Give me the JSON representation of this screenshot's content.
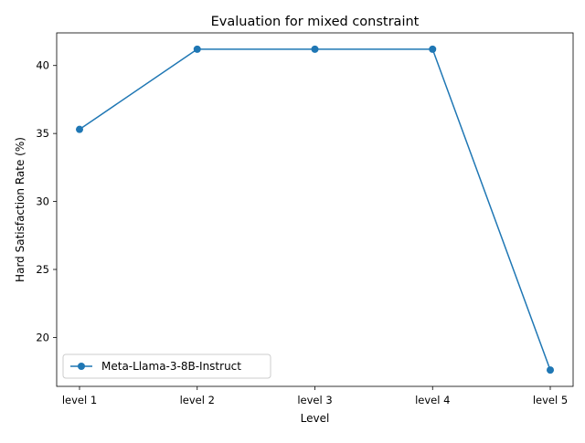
{
  "chart_data": {
    "type": "line",
    "title": "Evaluation for mixed constraint",
    "xlabel": "Level",
    "ylabel": "Hard Satisfaction Rate (%)",
    "categories": [
      "level 1",
      "level 2",
      "level 3",
      "level 4",
      "level 5"
    ],
    "series": [
      {
        "name": "Meta-Llama-3-8B-Instruct",
        "values": [
          35.3,
          41.2,
          41.2,
          41.2,
          17.6
        ],
        "color": "#1f77b4",
        "marker": "circle"
      }
    ],
    "ylim": [
      16.4,
      42.4
    ],
    "yticks": [
      20,
      25,
      30,
      35,
      40
    ],
    "grid": false,
    "legend_position": "lower-left"
  }
}
